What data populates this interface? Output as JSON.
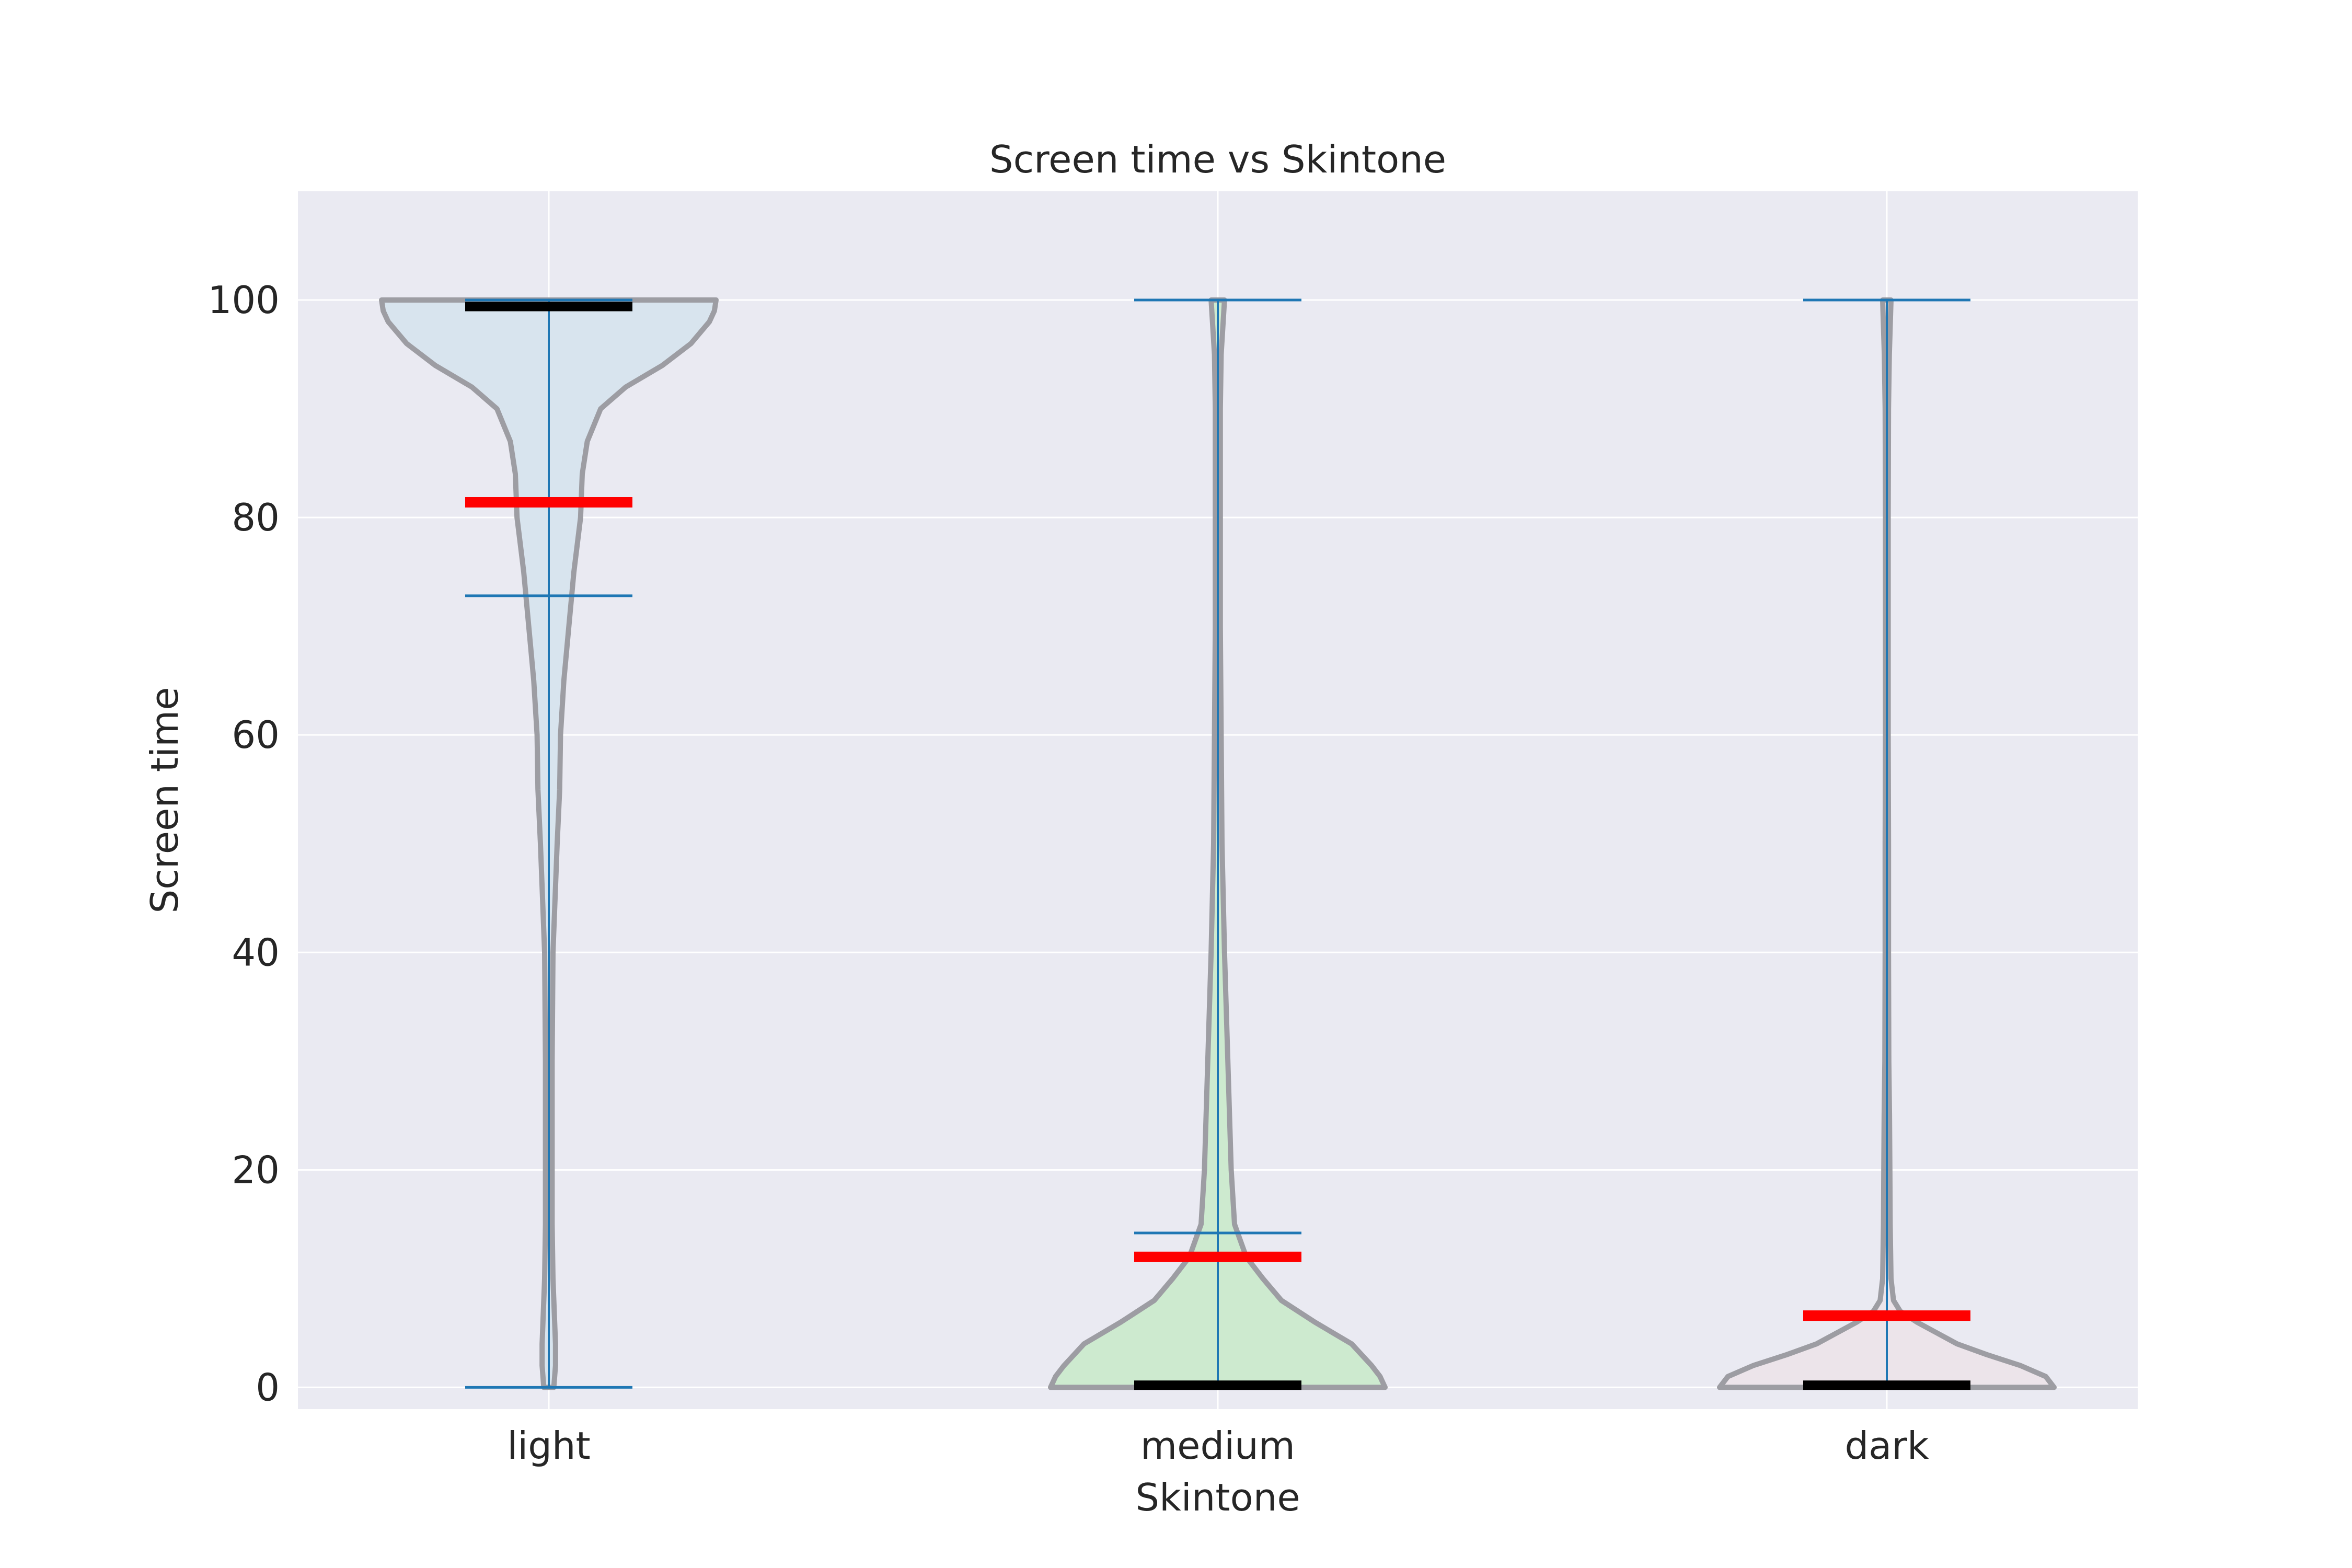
{
  "chart_data": {
    "type": "violin",
    "title": "Screen time vs Skintone",
    "xlabel": "Skintone",
    "ylabel": "Screen time",
    "ylim": [
      -2,
      110
    ],
    "yticks": [
      0,
      20,
      40,
      60,
      80,
      100
    ],
    "grid": true,
    "colors": {
      "background": "#eaeaf2",
      "grid": "#ffffff",
      "outline": "#9d9da3",
      "range_lines": "#1f77b4",
      "mean_line": "#ff0000",
      "median_line": "#000000"
    },
    "categories": [
      {
        "name": "light",
        "fill": "#d8e4ee",
        "min": 0,
        "max": 100,
        "q25": 72.8,
        "mean": 81.4,
        "median": 99.4,
        "density": [
          [
            0,
            0.03
          ],
          [
            1,
            0.035
          ],
          [
            2,
            0.04
          ],
          [
            4,
            0.04
          ],
          [
            6,
            0.035
          ],
          [
            8,
            0.03
          ],
          [
            10,
            0.025
          ],
          [
            15,
            0.02
          ],
          [
            20,
            0.02
          ],
          [
            30,
            0.02
          ],
          [
            40,
            0.025
          ],
          [
            50,
            0.05
          ],
          [
            55,
            0.065
          ],
          [
            60,
            0.07
          ],
          [
            65,
            0.09
          ],
          [
            70,
            0.12
          ],
          [
            75,
            0.15
          ],
          [
            80,
            0.19
          ],
          [
            84,
            0.2
          ],
          [
            87,
            0.23
          ],
          [
            90,
            0.31
          ],
          [
            92,
            0.46
          ],
          [
            94,
            0.68
          ],
          [
            96,
            0.85
          ],
          [
            98,
            0.96
          ],
          [
            99,
            0.99
          ],
          [
            100,
            1.0
          ]
        ]
      },
      {
        "name": "medium",
        "fill": "#cdeacf",
        "min": 0,
        "max": 100,
        "q75": 14.2,
        "mean": 12.0,
        "median": 0.2,
        "density": [
          [
            0,
            1.0
          ],
          [
            1,
            0.97
          ],
          [
            2,
            0.92
          ],
          [
            4,
            0.8
          ],
          [
            6,
            0.58
          ],
          [
            8,
            0.38
          ],
          [
            10,
            0.27
          ],
          [
            12,
            0.17
          ],
          [
            15,
            0.1
          ],
          [
            20,
            0.08
          ],
          [
            25,
            0.07
          ],
          [
            30,
            0.06
          ],
          [
            40,
            0.04
          ],
          [
            50,
            0.025
          ],
          [
            60,
            0.02
          ],
          [
            70,
            0.015
          ],
          [
            80,
            0.015
          ],
          [
            90,
            0.015
          ],
          [
            95,
            0.02
          ],
          [
            100,
            0.04
          ]
        ]
      },
      {
        "name": "dark",
        "fill": "#ece4ea",
        "min": 0,
        "max": 100,
        "q75": 0.5,
        "mean": 6.6,
        "median": 0.2,
        "density": [
          [
            0,
            1.0
          ],
          [
            1,
            0.95
          ],
          [
            2,
            0.8
          ],
          [
            3,
            0.6
          ],
          [
            4,
            0.42
          ],
          [
            5,
            0.3
          ],
          [
            6,
            0.18
          ],
          [
            7,
            0.08
          ],
          [
            8,
            0.04
          ],
          [
            10,
            0.025
          ],
          [
            15,
            0.02
          ],
          [
            20,
            0.018
          ],
          [
            25,
            0.016
          ],
          [
            30,
            0.012
          ],
          [
            40,
            0.01
          ],
          [
            50,
            0.01
          ],
          [
            60,
            0.008
          ],
          [
            80,
            0.008
          ],
          [
            90,
            0.01
          ],
          [
            95,
            0.015
          ],
          [
            100,
            0.025
          ]
        ]
      }
    ]
  }
}
